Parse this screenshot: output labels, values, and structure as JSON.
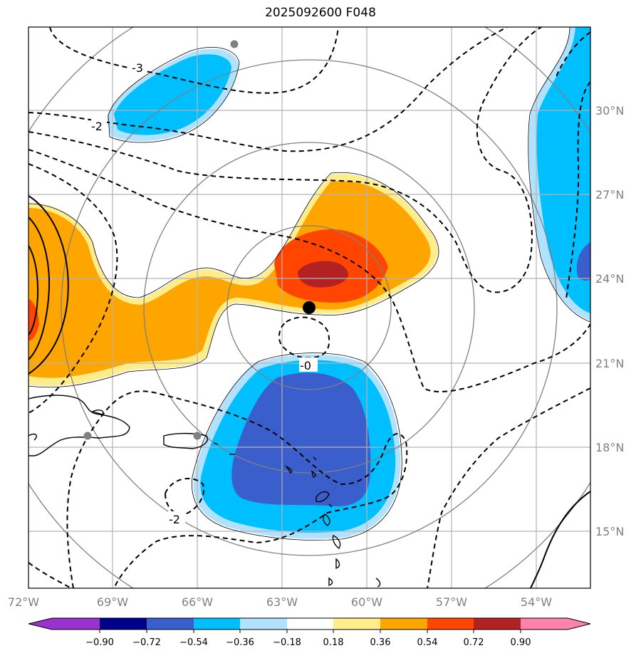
{
  "title": "2025092600 F048",
  "lon_labels": [
    "72°W",
    "69°W",
    "66°W",
    "63°W",
    "60°W",
    "57°W",
    "54°W"
  ],
  "lat_labels": [
    "30°N",
    "27°N",
    "24°N",
    "21°N",
    "18°N",
    "15°N"
  ],
  "contour_labels": [
    "-3",
    "-2",
    "-0",
    "-2"
  ],
  "colorbar": {
    "ticks": [
      "−0.90",
      "−0.72",
      "−0.54",
      "−0.36",
      "−0.18",
      "0.18",
      "0.36",
      "0.54",
      "0.72",
      "0.90"
    ],
    "colors": [
      "#9a32cd",
      "#00008b",
      "#3a5fcd",
      "#00bfff",
      "#b0e2ff",
      "#ffffff",
      "#ffec8b",
      "#ffa500",
      "#ff4500",
      "#b22222",
      "#ff82ab"
    ]
  },
  "storm_center": {
    "lon": -62.0,
    "lat": 23.0
  }
}
